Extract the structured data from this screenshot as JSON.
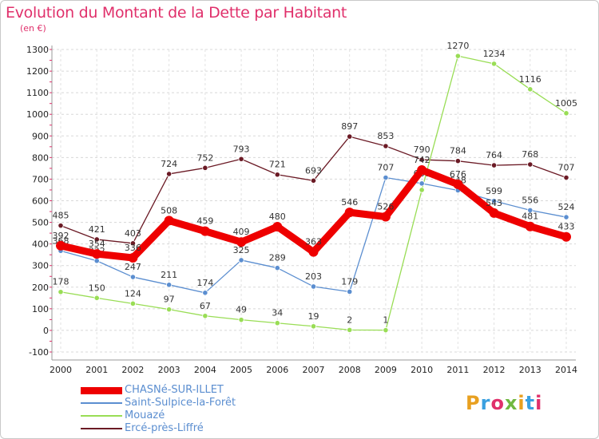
{
  "title": "Evolution du Montant de la Dette par Habitant",
  "subtitle": "(en €)",
  "logo": "Proxiti",
  "chart_data": {
    "type": "line",
    "x": [
      "2000",
      "2001",
      "2002",
      "2003",
      "2004",
      "2005",
      "2006",
      "2007",
      "2008",
      "2009",
      "2010",
      "2011",
      "2012",
      "2013",
      "2014"
    ],
    "ylim": [
      -100,
      1300
    ],
    "yticks": [
      -100,
      0,
      100,
      200,
      300,
      400,
      500,
      600,
      700,
      800,
      900,
      1000,
      1100,
      1200,
      1300
    ],
    "grid": true,
    "legend_position": "bottom-left",
    "series": [
      {
        "name": "Ercé-près-Liffré",
        "color": "#6b1a25",
        "values": [
          485,
          421,
          403,
          724,
          752,
          793,
          721,
          693,
          897,
          853,
          790,
          784,
          764,
          768,
          707
        ],
        "labels": [
          "485",
          "421",
          "403",
          "724",
          "752",
          "793",
          "721",
          "693",
          "897",
          "853",
          "790",
          "784",
          "764",
          "768",
          "707"
        ]
      },
      {
        "name": "Mouazé",
        "color": "#99dd55",
        "values": [
          178,
          150,
          124,
          97,
          67,
          49,
          34,
          19,
          2,
          1,
          650,
          1270,
          1234,
          1116,
          1005
        ],
        "labels": [
          "178",
          "150",
          "124",
          "97",
          "67",
          "49",
          "34",
          "19",
          "2",
          "1",
          "",
          "1270",
          "1234",
          "1116",
          "1005"
        ]
      },
      {
        "name": "Saint-Sulpice-la-Forêt",
        "color": "#5b8ed0",
        "values": [
          368,
          322,
          247,
          211,
          174,
          325,
          289,
          203,
          179,
          707,
          680,
          648,
          599,
          556,
          524
        ],
        "labels": [
          "368",
          "322",
          "247",
          "211",
          "174",
          "325",
          "289",
          "203",
          "179",
          "707",
          "680",
          "648",
          "599",
          "556",
          "524"
        ]
      },
      {
        "name": "CHASNé-SUR-ILLET",
        "color": "#ee0000",
        "values": [
          392,
          354,
          336,
          508,
          459,
          409,
          480,
          363,
          546,
          526,
          742,
          676,
          543,
          481,
          433
        ],
        "labels": [
          "392",
          "354",
          "336",
          "508",
          "459",
          "409",
          "480",
          "363",
          "546",
          "526",
          "742",
          "676",
          "543",
          "481",
          "433"
        ]
      }
    ],
    "legend": [
      "CHASNé-SUR-ILLET",
      "Saint-Sulpice-la-Forêt",
      "Mouazé",
      "Ercé-près-Liffré"
    ]
  },
  "legend_colors": [
    "#ee0000",
    "#5b8ed0",
    "#99dd55",
    "#6b1a25"
  ]
}
